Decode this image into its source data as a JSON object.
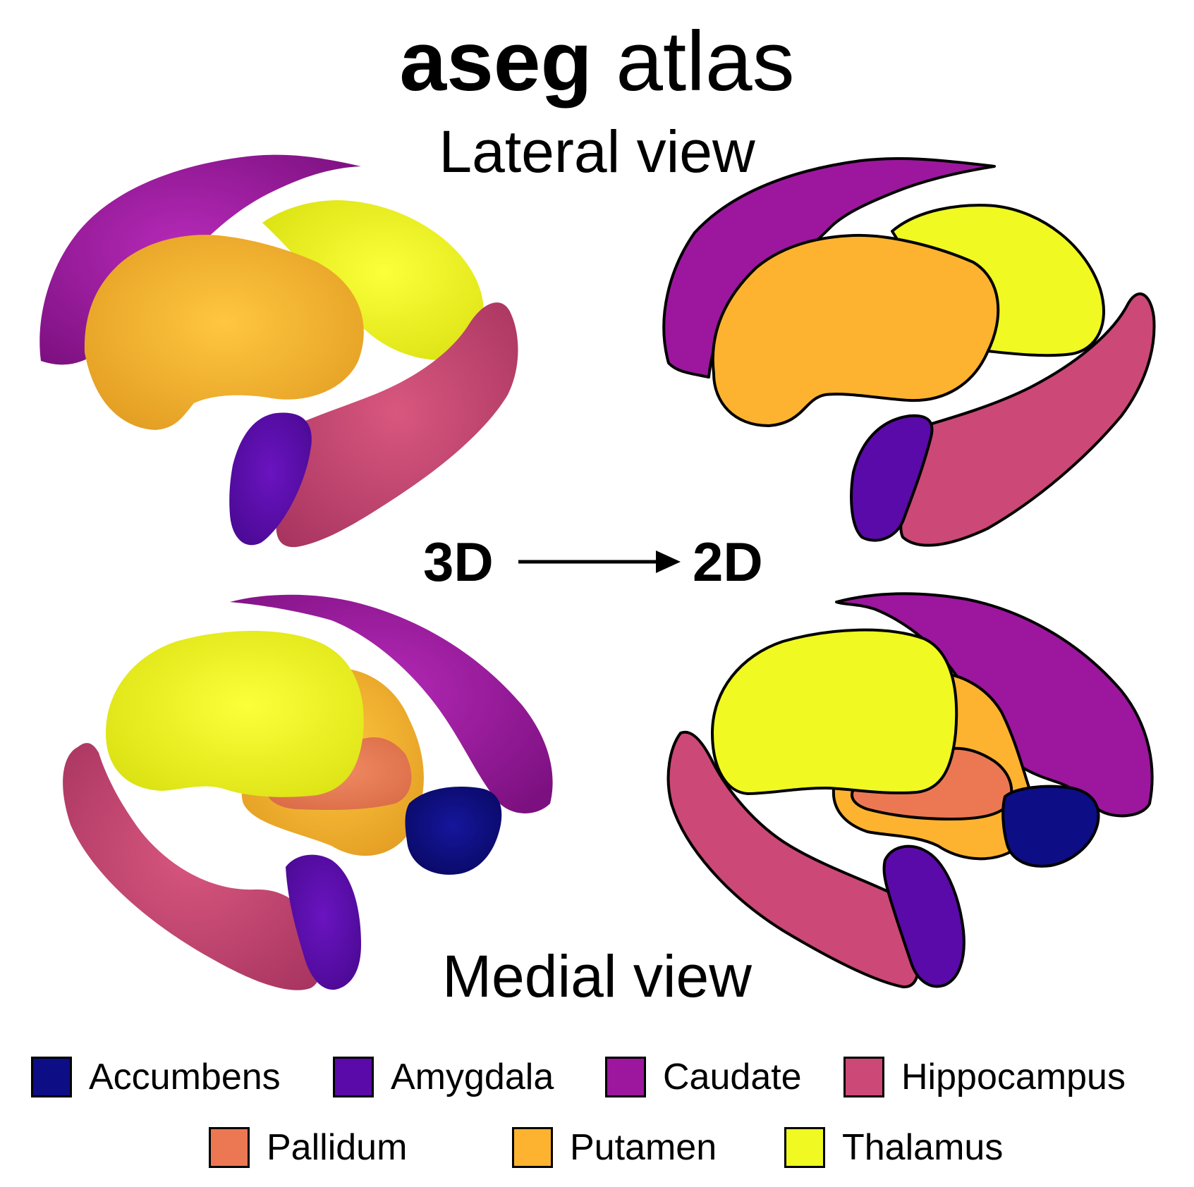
{
  "title": {
    "bold": "aseg",
    "regular": "atlas"
  },
  "views": {
    "lateral": "Lateral view",
    "medial": "Medial view"
  },
  "conversion": {
    "from": "3D",
    "to": "2D"
  },
  "structures": {
    "accumbens": {
      "label": "Accumbens",
      "color": "#0d0d85"
    },
    "amygdala": {
      "label": "Amygdala",
      "color": "#5a0aa8"
    },
    "caudate": {
      "label": "Caudate",
      "color": "#9c179e"
    },
    "hippocampus": {
      "label": "Hippocampus",
      "color": "#cc4877"
    },
    "pallidum": {
      "label": "Pallidum",
      "color": "#ec7853"
    },
    "putamen": {
      "label": "Putamen",
      "color": "#fdb32f"
    },
    "thalamus": {
      "label": "Thalamus",
      "color": "#f0f921"
    }
  }
}
